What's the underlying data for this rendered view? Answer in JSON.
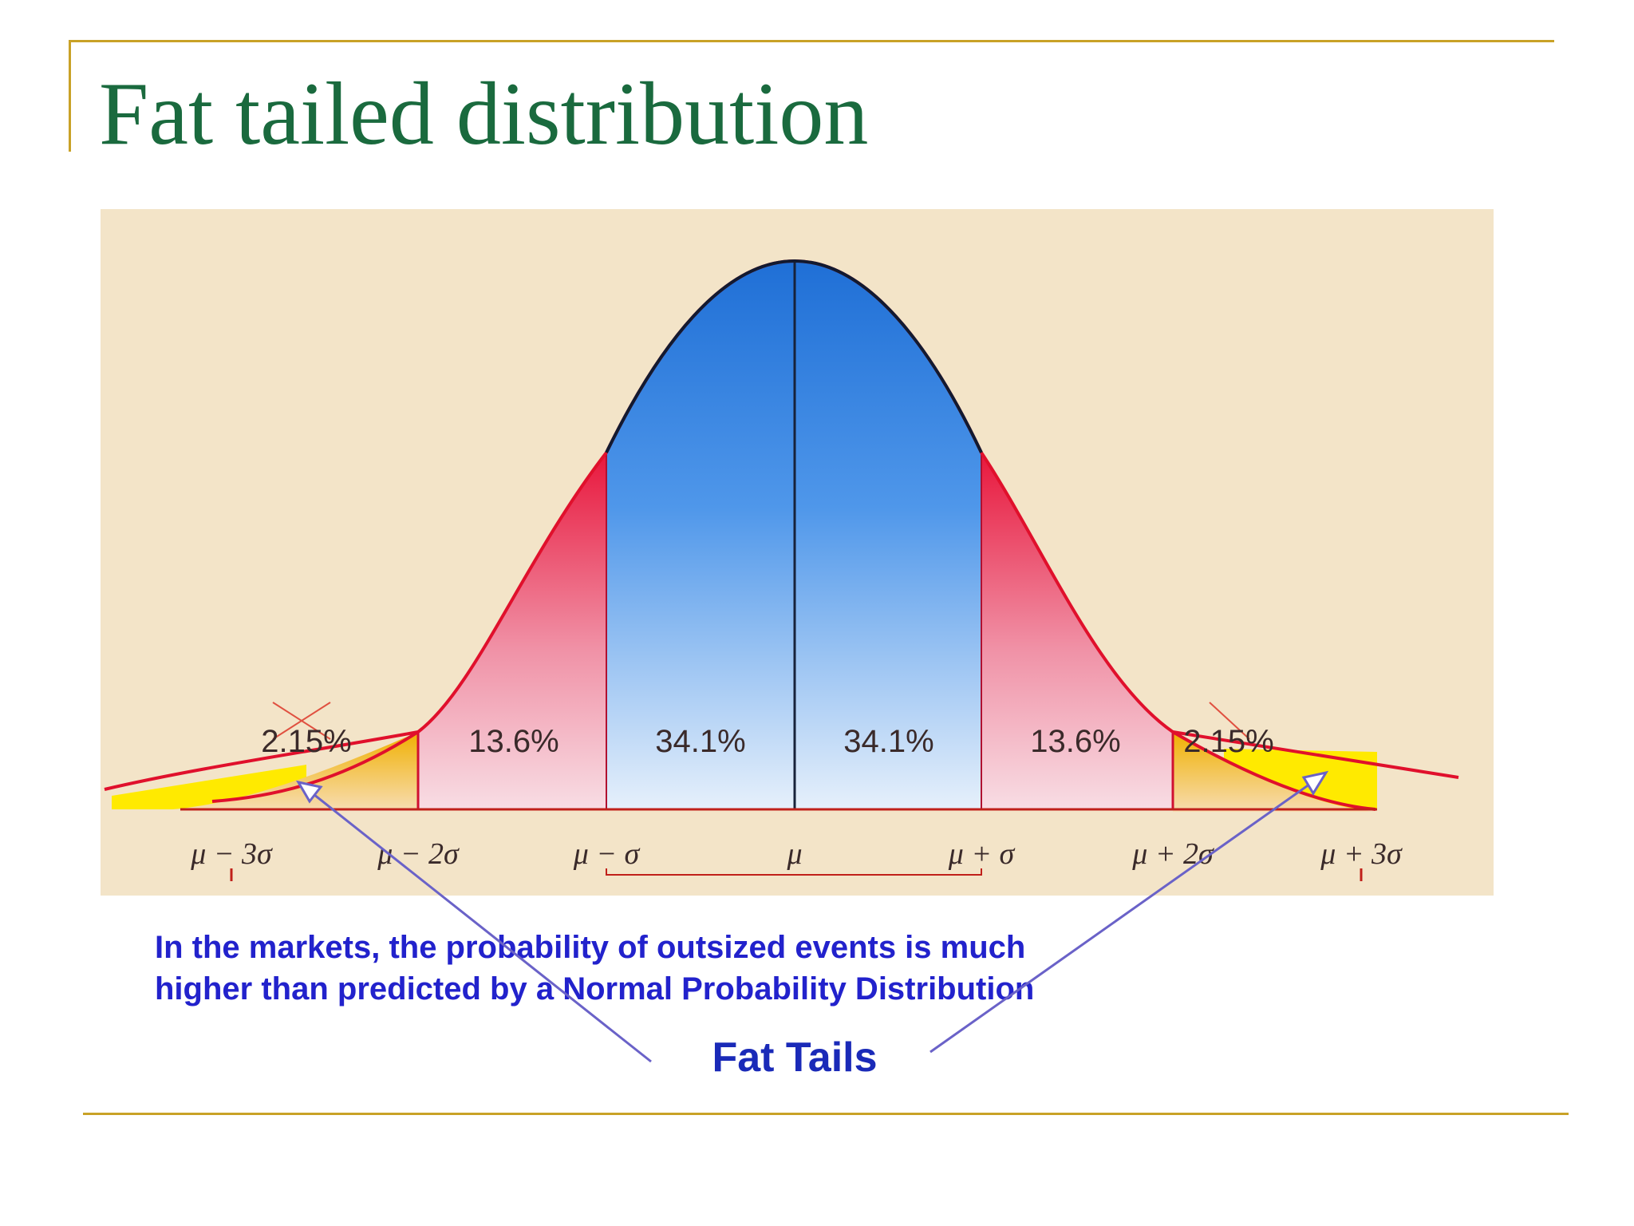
{
  "title": "Fat tailed distribution",
  "percent_labels": [
    "2.15%",
    "13.6%",
    "34.1%",
    "34.1%",
    "13.6%",
    "2.15%"
  ],
  "axis_labels": [
    "μ − 3σ",
    "μ − 2σ",
    "μ − σ",
    "μ",
    "μ + σ",
    "μ + 2σ",
    "μ + 3σ"
  ],
  "note_lines": [
    "In the markets, the probability of outsized events is much",
    "higher than predicted by a Normal Probability Distribution"
  ],
  "callout": "Fat Tails",
  "colors": {
    "title": "#1a6a3e",
    "rule": "#c9a227",
    "background_panel": "#f3e4c8",
    "center_fill_top": "#1f6fd6",
    "side_fill_top": "#e8173c",
    "tail_fill": "#f0b000",
    "fat_tail_fill": "#ffea00",
    "curve": "#e0102c",
    "note_text": "#2222cc",
    "callout_text": "#1a2ab8",
    "arrow": "#6a62c8"
  }
}
